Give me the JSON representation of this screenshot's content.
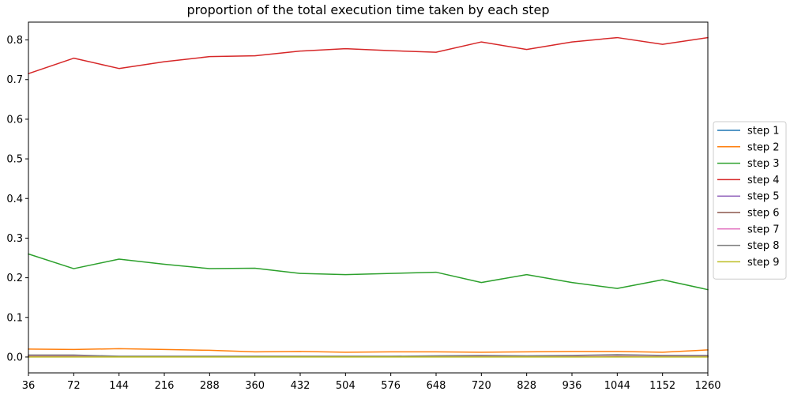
{
  "chart_data": {
    "type": "line",
    "title": "proportion of the total execution time taken by each step",
    "xlabel": "",
    "ylabel": "",
    "x": [
      36,
      72,
      144,
      216,
      288,
      360,
      432,
      504,
      576,
      648,
      720,
      828,
      936,
      1044,
      1152,
      1260
    ],
    "x_tick_labels": [
      "36",
      "72",
      "144",
      "216",
      "288",
      "360",
      "432",
      "504",
      "576",
      "648",
      "720",
      "828",
      "936",
      "1044",
      "1152",
      "1260"
    ],
    "y_ticks": [
      0.0,
      0.1,
      0.2,
      0.3,
      0.4,
      0.5,
      0.6,
      0.7,
      0.8
    ],
    "y_tick_labels": [
      "0.0",
      "0.1",
      "0.2",
      "0.3",
      "0.4",
      "0.5",
      "0.6",
      "0.7",
      "0.8"
    ],
    "ylim": [
      -0.04,
      0.845
    ],
    "grid": false,
    "legend_position": "right-center",
    "series": [
      {
        "name": "step 1",
        "color": "#1f77b4",
        "values": [
          0.001,
          0.001,
          0.001,
          0.001,
          0.001,
          0.001,
          0.001,
          0.001,
          0.001,
          0.001,
          0.001,
          0.001,
          0.001,
          0.001,
          0.001,
          0.001
        ]
      },
      {
        "name": "step 2",
        "color": "#ff7f0e",
        "values": [
          0.02,
          0.019,
          0.021,
          0.019,
          0.017,
          0.013,
          0.014,
          0.012,
          0.013,
          0.013,
          0.012,
          0.013,
          0.014,
          0.014,
          0.012,
          0.018
        ]
      },
      {
        "name": "step 3",
        "color": "#2ca02c",
        "values": [
          0.26,
          0.223,
          0.247,
          0.234,
          0.223,
          0.224,
          0.211,
          0.208,
          0.211,
          0.214,
          0.188,
          0.208,
          0.188,
          0.173,
          0.195,
          0.17
        ]
      },
      {
        "name": "step 4",
        "color": "#d62728",
        "values": [
          0.715,
          0.754,
          0.728,
          0.745,
          0.758,
          0.76,
          0.772,
          0.778,
          0.773,
          0.769,
          0.795,
          0.776,
          0.795,
          0.806,
          0.789,
          0.806
        ]
      },
      {
        "name": "step 5",
        "color": "#9467bd",
        "values": [
          0.001,
          0.001,
          0.001,
          0.001,
          0.001,
          0.001,
          0.001,
          0.001,
          0.001,
          0.001,
          0.001,
          0.001,
          0.001,
          0.001,
          0.001,
          0.001
        ]
      },
      {
        "name": "step 6",
        "color": "#8c564b",
        "values": [
          0.002,
          0.002,
          0.001,
          0.001,
          0.001,
          0.001,
          0.001,
          0.001,
          0.001,
          0.001,
          0.001,
          0.001,
          0.001,
          0.002,
          0.001,
          0.001
        ]
      },
      {
        "name": "step 7",
        "color": "#e377c2",
        "values": [
          0.001,
          0.001,
          0.001,
          0.001,
          0.001,
          0.001,
          0.001,
          0.001,
          0.001,
          0.001,
          0.001,
          0.001,
          0.001,
          0.001,
          0.001,
          0.001
        ]
      },
      {
        "name": "step 8",
        "color": "#7f7f7f",
        "values": [
          0.005,
          0.005,
          0.002,
          0.002,
          0.002,
          0.002,
          0.002,
          0.002,
          0.002,
          0.003,
          0.004,
          0.003,
          0.004,
          0.006,
          0.004,
          0.004
        ]
      },
      {
        "name": "step 9",
        "color": "#bcbd22",
        "values": [
          0.0,
          0.0,
          0.0,
          0.0,
          0.0,
          0.0,
          0.0,
          0.0,
          0.0,
          0.0,
          0.0,
          0.0,
          0.0,
          0.0,
          0.0,
          0.0
        ]
      }
    ]
  }
}
